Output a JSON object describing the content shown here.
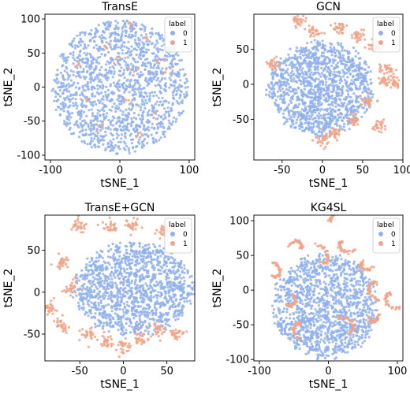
{
  "colors": {
    "class0": "#8fb0ec",
    "class1": "#f0a588",
    "axis": "#000000",
    "legend_border": "#cccccc"
  },
  "chart_data": [
    {
      "type": "scatter",
      "title": "TransE",
      "xlabel": "tSNE_1",
      "ylabel": "tSNE_2",
      "xlim": [
        -108,
        108
      ],
      "ylim": [
        -107,
        107
      ],
      "xticks": [
        -100,
        0,
        100
      ],
      "yticks": [
        -100,
        -50,
        0,
        50,
        100
      ],
      "legend": {
        "title": "label",
        "placement": "top-right",
        "entries": [
          "0",
          "1"
        ]
      },
      "series": [
        {
          "name": "0",
          "shape": "disk",
          "center": [
            0,
            0
          ],
          "radius": 98
        },
        {
          "name": "1",
          "shape": "sparse",
          "sample_points": [
            [
              15,
              90
            ],
            [
              -20,
              60
            ],
            [
              40,
              70
            ],
            [
              60,
              40
            ],
            [
              70,
              20
            ],
            [
              -60,
              30
            ],
            [
              10,
              -20
            ],
            [
              -30,
              -60
            ],
            [
              50,
              -40
            ],
            [
              20,
              20
            ],
            [
              -50,
              -20
            ],
            [
              30,
              -70
            ],
            [
              0,
              40
            ]
          ]
        }
      ]
    },
    {
      "type": "scatter",
      "title": "GCN",
      "xlabel": "tSNE_1",
      "ylabel": "tSNE_2",
      "xlim": [
        -85,
        100
      ],
      "ylim": [
        -108,
        100
      ],
      "xticks": [
        -50,
        0,
        50,
        100
      ],
      "yticks": [
        -50,
        0,
        50
      ],
      "legend": {
        "title": "label",
        "placement": "top-right",
        "entries": [
          "0",
          "1"
        ]
      },
      "series": [
        {
          "name": "0",
          "shape": "main-blob",
          "center": [
            0,
            10
          ],
          "extent": [
            -65,
            62,
            -70,
            60
          ]
        },
        {
          "name": "1",
          "shape": "clusters",
          "cluster_centers": [
            [
              -30,
              90
            ],
            [
              -10,
              75
            ],
            [
              20,
              80
            ],
            [
              45,
              70
            ],
            [
              65,
              55
            ],
            [
              80,
              20
            ],
            [
              -60,
              30
            ],
            [
              75,
              5
            ],
            [
              90,
              5
            ],
            [
              55,
              -25
            ],
            [
              70,
              -60
            ],
            [
              40,
              -50
            ],
            [
              15,
              -70
            ],
            [
              0,
              -80
            ]
          ]
        }
      ]
    },
    {
      "type": "scatter",
      "title": "TransE+GCN",
      "xlabel": "tSNE_1",
      "ylabel": "tSNE_2",
      "xlim": [
        -90,
        82
      ],
      "ylim": [
        -82,
        92
      ],
      "xticks": [
        -50,
        0,
        50
      ],
      "yticks": [
        -50,
        0,
        50
      ],
      "legend": {
        "title": "label",
        "placement": "top-right",
        "entries": [
          "0",
          "1"
        ]
      },
      "series": [
        {
          "name": "0",
          "shape": "main-blob",
          "center": [
            5,
            10
          ],
          "extent": [
            -55,
            80,
            -50,
            58
          ]
        },
        {
          "name": "1",
          "shape": "clusters",
          "cluster_centers": [
            [
              -50,
              80
            ],
            [
              -15,
              78
            ],
            [
              10,
              80
            ],
            [
              45,
              72
            ],
            [
              -70,
              35
            ],
            [
              -85,
              -20
            ],
            [
              -70,
              -40
            ],
            [
              -40,
              -50
            ],
            [
              -20,
              -60
            ],
            [
              0,
              -65
            ],
            [
              20,
              -55
            ],
            [
              40,
              -45
            ],
            [
              60,
              -50
            ],
            [
              -60,
              5
            ]
          ]
        }
      ]
    },
    {
      "type": "scatter",
      "title": "KG4SL",
      "xlabel": "tSNE_1",
      "ylabel": "tSNE_2",
      "xlim": [
        -108,
        108
      ],
      "ylim": [
        -102,
        108
      ],
      "xticks": [
        -100,
        0,
        100
      ],
      "yticks": [
        -100,
        -50,
        0,
        50,
        100
      ],
      "legend": {
        "title": "label",
        "placement": "top-right",
        "entries": [
          "0",
          "1"
        ]
      },
      "series": [
        {
          "name": "0",
          "shape": "main-blob",
          "center": [
            5,
            -20
          ],
          "extent": [
            -80,
            70,
            -95,
            50
          ]
        },
        {
          "name": "1",
          "shape": "curves",
          "cluster_centers": [
            [
              0,
              100
            ],
            [
              -40,
              60
            ],
            [
              20,
              70
            ],
            [
              50,
              40
            ],
            [
              -80,
              20
            ],
            [
              -60,
              -20
            ],
            [
              70,
              10
            ],
            [
              90,
              -5
            ],
            [
              60,
              -40
            ],
            [
              -40,
              -50
            ],
            [
              30,
              -60
            ],
            [
              -10,
              40
            ]
          ]
        }
      ]
    }
  ]
}
